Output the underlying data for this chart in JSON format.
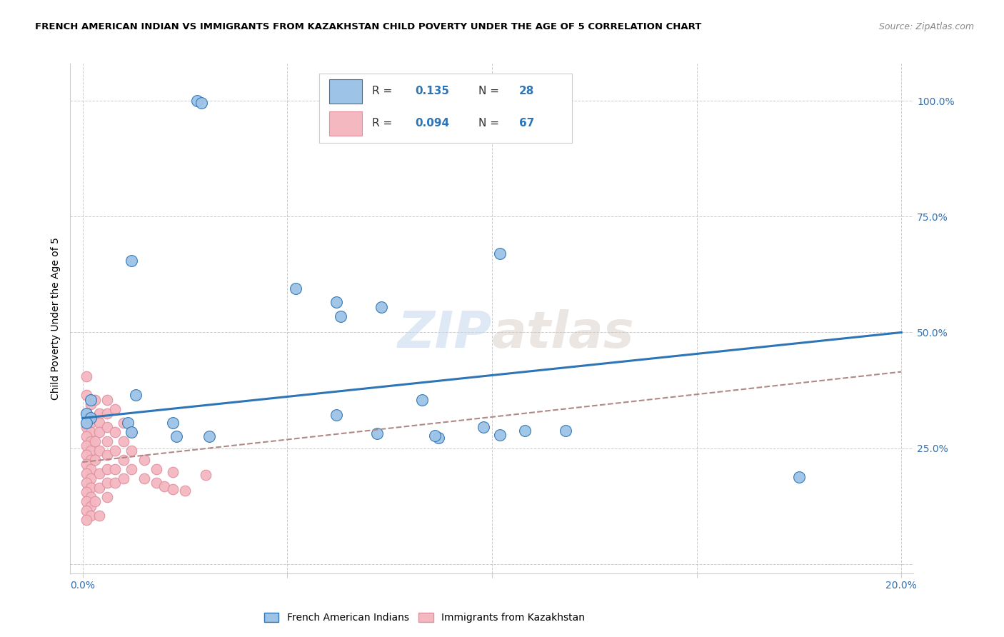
{
  "title": "FRENCH AMERICAN INDIAN VS IMMIGRANTS FROM KAZAKHSTAN CHILD POVERTY UNDER THE AGE OF 5 CORRELATION CHART",
  "source": "Source: ZipAtlas.com",
  "xlabel_ticks": [
    "0.0%",
    "",
    "",
    "",
    "20.0%"
  ],
  "xlabel_vals": [
    0.0,
    0.05,
    0.1,
    0.15,
    0.2
  ],
  "ylabel": "Child Poverty Under the Age of 5",
  "ylabel_ticks_right": [
    "100.0%",
    "75.0%",
    "50.0%",
    "25.0%",
    ""
  ],
  "ylabel_vals": [
    1.0,
    0.75,
    0.5,
    0.25,
    0.0
  ],
  "ylim": [
    -0.02,
    1.08
  ],
  "xlim": [
    -0.003,
    0.203
  ],
  "blue_R": 0.135,
  "blue_N": 28,
  "pink_R": 0.094,
  "pink_N": 67,
  "blue_color": "#9dc3e6",
  "pink_color": "#f4b8c1",
  "blue_line_color": "#2e75b6",
  "pink_line_color": "#b08888",
  "watermark": "ZIPatlas",
  "blue_line_x": [
    0.0,
    0.2
  ],
  "blue_line_y": [
    0.315,
    0.5
  ],
  "pink_line_x": [
    0.0,
    0.2
  ],
  "pink_line_y": [
    0.22,
    0.415
  ],
  "blue_points": [
    [
      0.028,
      1.0
    ],
    [
      0.029,
      0.995
    ],
    [
      0.012,
      0.655
    ],
    [
      0.002,
      0.355
    ],
    [
      0.001,
      0.325
    ],
    [
      0.013,
      0.365
    ],
    [
      0.002,
      0.315
    ],
    [
      0.052,
      0.595
    ],
    [
      0.062,
      0.565
    ],
    [
      0.063,
      0.535
    ],
    [
      0.073,
      0.555
    ],
    [
      0.102,
      0.67
    ],
    [
      0.083,
      0.355
    ],
    [
      0.001,
      0.305
    ],
    [
      0.011,
      0.305
    ],
    [
      0.012,
      0.285
    ],
    [
      0.022,
      0.305
    ],
    [
      0.023,
      0.275
    ],
    [
      0.031,
      0.275
    ],
    [
      0.098,
      0.295
    ],
    [
      0.108,
      0.288
    ],
    [
      0.102,
      0.278
    ],
    [
      0.118,
      0.288
    ],
    [
      0.072,
      0.282
    ],
    [
      0.087,
      0.272
    ],
    [
      0.086,
      0.277
    ],
    [
      0.175,
      0.188
    ],
    [
      0.062,
      0.322
    ]
  ],
  "pink_points": [
    [
      0.001,
      0.405
    ],
    [
      0.001,
      0.365
    ],
    [
      0.002,
      0.355
    ],
    [
      0.002,
      0.345
    ],
    [
      0.001,
      0.325
    ],
    [
      0.002,
      0.305
    ],
    [
      0.001,
      0.295
    ],
    [
      0.002,
      0.285
    ],
    [
      0.001,
      0.275
    ],
    [
      0.002,
      0.265
    ],
    [
      0.001,
      0.255
    ],
    [
      0.002,
      0.245
    ],
    [
      0.001,
      0.235
    ],
    [
      0.002,
      0.225
    ],
    [
      0.001,
      0.215
    ],
    [
      0.002,
      0.205
    ],
    [
      0.001,
      0.195
    ],
    [
      0.002,
      0.185
    ],
    [
      0.001,
      0.175
    ],
    [
      0.002,
      0.165
    ],
    [
      0.001,
      0.155
    ],
    [
      0.002,
      0.145
    ],
    [
      0.001,
      0.135
    ],
    [
      0.002,
      0.125
    ],
    [
      0.001,
      0.115
    ],
    [
      0.002,
      0.105
    ],
    [
      0.001,
      0.095
    ],
    [
      0.003,
      0.355
    ],
    [
      0.004,
      0.325
    ],
    [
      0.004,
      0.305
    ],
    [
      0.004,
      0.285
    ],
    [
      0.003,
      0.265
    ],
    [
      0.004,
      0.245
    ],
    [
      0.003,
      0.225
    ],
    [
      0.004,
      0.195
    ],
    [
      0.004,
      0.165
    ],
    [
      0.003,
      0.135
    ],
    [
      0.004,
      0.105
    ],
    [
      0.006,
      0.355
    ],
    [
      0.006,
      0.325
    ],
    [
      0.006,
      0.295
    ],
    [
      0.006,
      0.265
    ],
    [
      0.006,
      0.235
    ],
    [
      0.006,
      0.205
    ],
    [
      0.006,
      0.175
    ],
    [
      0.006,
      0.145
    ],
    [
      0.008,
      0.335
    ],
    [
      0.008,
      0.285
    ],
    [
      0.008,
      0.245
    ],
    [
      0.008,
      0.205
    ],
    [
      0.008,
      0.175
    ],
    [
      0.01,
      0.305
    ],
    [
      0.01,
      0.265
    ],
    [
      0.01,
      0.225
    ],
    [
      0.01,
      0.185
    ],
    [
      0.012,
      0.285
    ],
    [
      0.012,
      0.245
    ],
    [
      0.012,
      0.205
    ],
    [
      0.015,
      0.225
    ],
    [
      0.015,
      0.185
    ],
    [
      0.018,
      0.205
    ],
    [
      0.022,
      0.198
    ],
    [
      0.03,
      0.192
    ],
    [
      0.018,
      0.175
    ],
    [
      0.02,
      0.168
    ],
    [
      0.022,
      0.162
    ],
    [
      0.025,
      0.158
    ]
  ]
}
